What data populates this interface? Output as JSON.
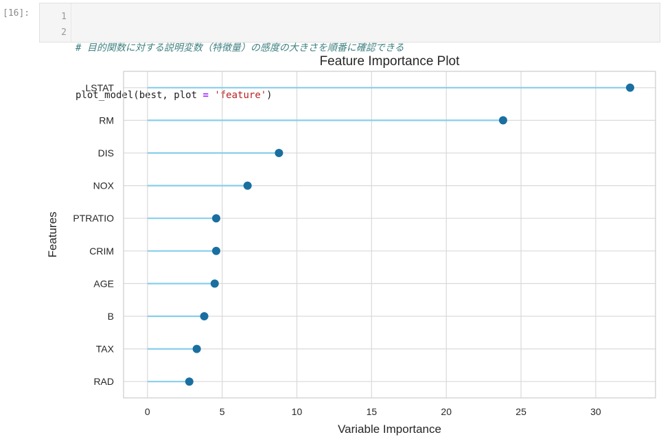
{
  "cell": {
    "prompt": "[16]:",
    "line_numbers": [
      "1",
      "2"
    ],
    "comment": "# 目的関数に対する説明変数（特徴量）の感度の大きさを順番に確認できる",
    "code_fn": "plot_model(best, plot ",
    "code_eq": "=",
    "code_space": " ",
    "code_str": "'feature'",
    "code_close": ")"
  },
  "chart_data": {
    "type": "lollipop",
    "title": "Feature Importance Plot",
    "xlabel": "Variable Importance",
    "ylabel": "Features",
    "xlim": [
      -1.6,
      34.0
    ],
    "xticks": [
      0,
      5,
      10,
      15,
      20,
      25,
      30
    ],
    "grid": true,
    "categories": [
      "LSTAT",
      "RM",
      "DIS",
      "NOX",
      "PTRATIO",
      "CRIM",
      "AGE",
      "B",
      "TAX",
      "RAD"
    ],
    "values": [
      32.3,
      23.8,
      8.8,
      6.7,
      4.6,
      4.6,
      4.5,
      3.8,
      3.3,
      2.8
    ],
    "colors": {
      "stem": "#87ceeb",
      "dot": "#1a6fa0",
      "grid": "#d9d9d9",
      "axis": "#cccccc"
    }
  }
}
